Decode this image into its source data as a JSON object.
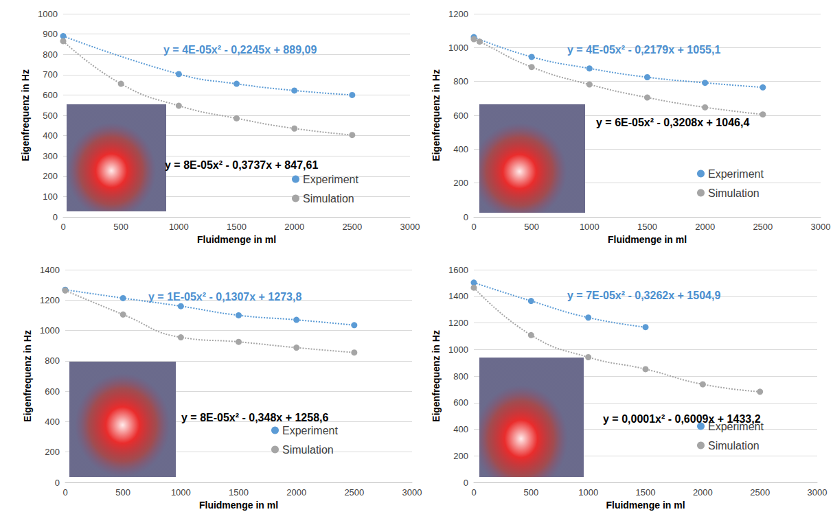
{
  "chart_data": [
    {
      "type": "line",
      "xlabel": "Fluidmenge in ml",
      "ylabel": "Eigenfrequenz in Hz",
      "xlim": [
        0,
        3000
      ],
      "xticks": [
        0,
        500,
        1000,
        1500,
        2000,
        2500,
        3000
      ],
      "ylim": [
        0,
        1000
      ],
      "yticks": [
        0,
        100,
        200,
        300,
        400,
        500,
        600,
        700,
        800,
        900,
        1000
      ],
      "grid": true,
      "legend": "lower right",
      "marker": "circle",
      "line_style": "dotted",
      "series": [
        {
          "name": "Experiment",
          "color": "#5b9bd5",
          "x": [
            0,
            1000,
            1500,
            2000,
            2500
          ],
          "values": [
            890,
            703,
            655,
            622,
            600
          ]
        },
        {
          "name": "Simulation",
          "color": "#a5a5a5",
          "x": [
            0,
            500,
            1000,
            1500,
            2000,
            2500
          ],
          "values": [
            865,
            655,
            547,
            485,
            435,
            403
          ]
        }
      ],
      "annotations": [
        {
          "text": "y = 4E-05x² - 0,2245x + 889,09",
          "color": "#4a8fd0"
        },
        {
          "text": "y = 8E-05x² - 0,3737x + 847,61",
          "color": "#000000"
        }
      ]
    },
    {
      "type": "line",
      "xlabel": "Fluidmenge in ml",
      "ylabel": "Eigenfrequenz in Hz",
      "xlim": [
        0,
        3000
      ],
      "xticks": [
        0,
        500,
        1000,
        1500,
        2000,
        2500,
        3000
      ],
      "ylim": [
        0,
        1200
      ],
      "yticks": [
        0,
        200,
        400,
        600,
        800,
        1000,
        1200
      ],
      "grid": true,
      "legend": "lower right",
      "marker": "circle",
      "line_style": "dotted",
      "series": [
        {
          "name": "Experiment",
          "color": "#5b9bd5",
          "x": [
            0,
            500,
            1000,
            1500,
            2000,
            2500
          ],
          "values": [
            1062,
            945,
            877,
            825,
            792,
            765
          ]
        },
        {
          "name": "Simulation",
          "color": "#a5a5a5",
          "x": [
            0,
            50,
            500,
            1000,
            1500,
            2000,
            2500
          ],
          "values": [
            1050,
            1035,
            885,
            782,
            705,
            647,
            605
          ]
        }
      ],
      "annotations": [
        {
          "text": "y = 4E-05x² - 0,2179x + 1055,1",
          "color": "#4a8fd0"
        },
        {
          "text": "y = 6E-05x² - 0,3208x + 1046,4",
          "color": "#000000"
        }
      ]
    },
    {
      "type": "line",
      "xlabel": "Fluidmenge in ml",
      "ylabel": "Eigenfrequenz in Hz",
      "xlim": [
        0,
        3000
      ],
      "xticks": [
        0,
        500,
        1000,
        1500,
        2000,
        2500,
        3000
      ],
      "ylim": [
        0,
        1400
      ],
      "yticks": [
        0,
        200,
        400,
        600,
        800,
        1000,
        1200,
        1400
      ],
      "grid": true,
      "legend": "lower right",
      "marker": "circle",
      "line_style": "dotted",
      "series": [
        {
          "name": "Experiment",
          "color": "#5b9bd5",
          "x": [
            0,
            500,
            1000,
            1500,
            2000,
            2500
          ],
          "values": [
            1268,
            1213,
            1160,
            1100,
            1070,
            1035
          ]
        },
        {
          "name": "Simulation",
          "color": "#a5a5a5",
          "x": [
            0,
            500,
            1000,
            1500,
            2000,
            2500
          ],
          "values": [
            1263,
            1105,
            955,
            925,
            887,
            855
          ]
        }
      ],
      "annotations": [
        {
          "text": "y = 1E-05x² - 0,1307x + 1273,8",
          "color": "#4a8fd0"
        },
        {
          "text": "y = 8E-05x² - 0,348x + 1258,6",
          "color": "#000000"
        }
      ]
    },
    {
      "type": "line",
      "xlabel": "Fluidmenge in ml",
      "ylabel": "Eigenfrequenz in Hz",
      "xlim": [
        0,
        3000
      ],
      "xticks": [
        0,
        500,
        1000,
        1500,
        2000,
        2500,
        3000
      ],
      "ylim": [
        0,
        1600
      ],
      "yticks": [
        0,
        200,
        400,
        600,
        800,
        1000,
        1200,
        1400,
        1600
      ],
      "grid": true,
      "legend": "lower right",
      "marker": "circle",
      "line_style": "dotted",
      "series": [
        {
          "name": "Experiment",
          "color": "#5b9bd5",
          "x": [
            0,
            500,
            1000,
            1500
          ],
          "values": [
            1503,
            1365,
            1240,
            1168
          ]
        },
        {
          "name": "Simulation",
          "color": "#a5a5a5",
          "x": [
            0,
            500,
            1000,
            1500,
            2000,
            2500
          ],
          "values": [
            1465,
            1108,
            942,
            852,
            738,
            682
          ]
        }
      ],
      "annotations": [
        {
          "text": "y = 7E-05x² - 0,3262x + 1504,9",
          "color": "#4a8fd0"
        },
        {
          "text": "y = 0,0001x² - 0,6009x + 1433,2",
          "color": "#000000"
        }
      ]
    }
  ]
}
